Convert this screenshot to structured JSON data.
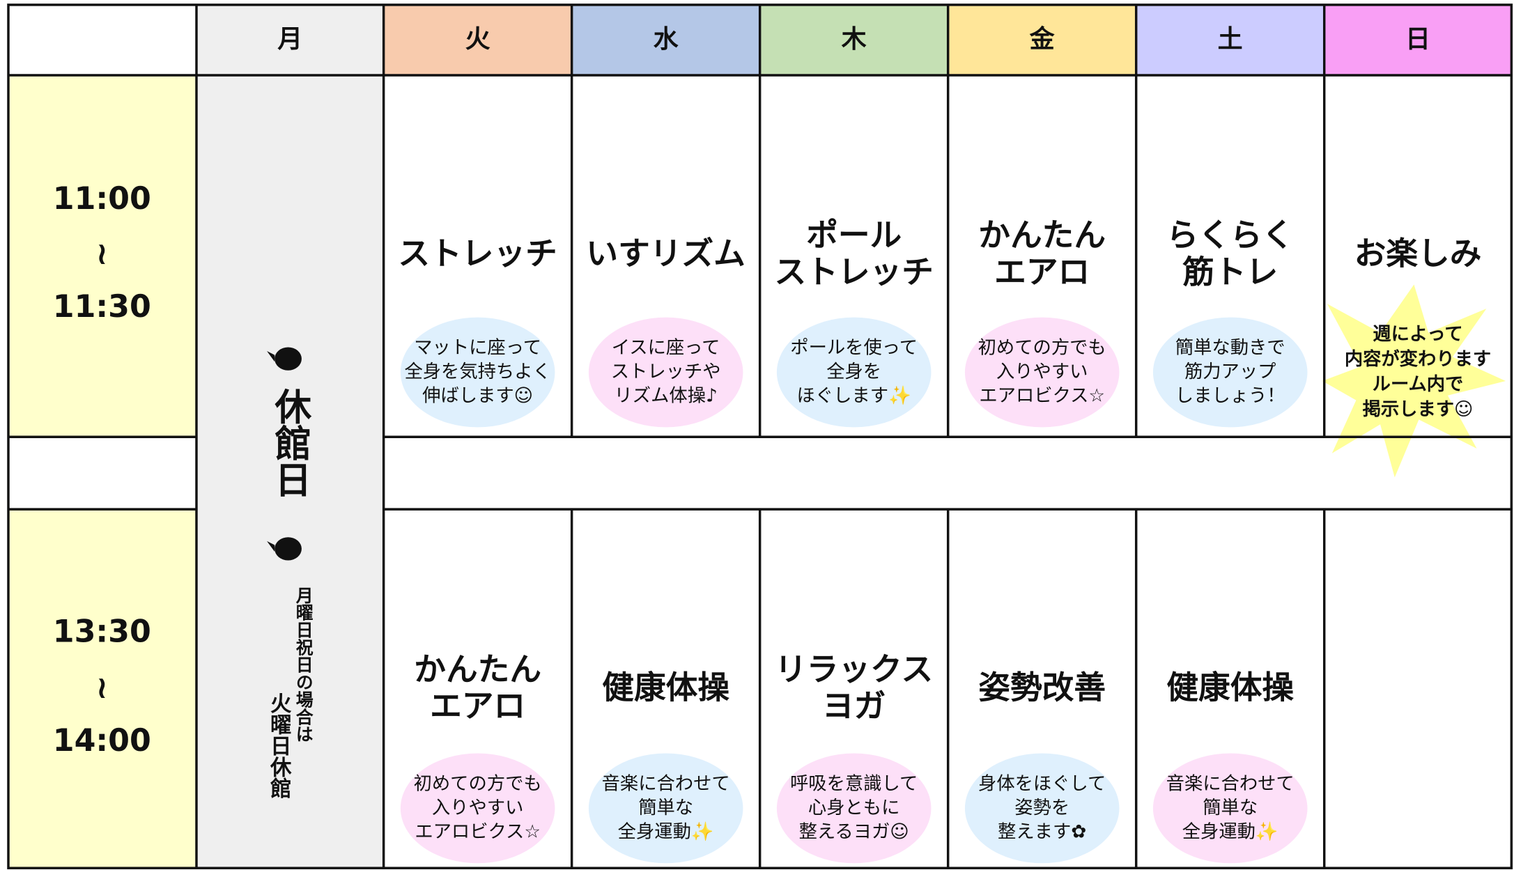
{
  "header": {
    "days": [
      "月",
      "火",
      "水",
      "木",
      "金",
      "土",
      "日"
    ]
  },
  "times": [
    {
      "start": "11:00",
      "separator": "≀",
      "end": "11:30"
    },
    {
      "start": "13:30",
      "separator": "≀",
      "end": "14:00"
    }
  ],
  "closed": {
    "title": "休館日",
    "note": [
      "月曜日祝日の場合は",
      "火曜日休館"
    ]
  },
  "morning": [
    {
      "title": [
        "ストレッチ"
      ],
      "description": [
        "マットに座って",
        "全身を気持ちよく",
        "伸ばします☺"
      ]
    },
    {
      "title": [
        "いすリズム"
      ],
      "description": [
        "イスに座って",
        "ストレッチや",
        "リズム体操♪"
      ]
    },
    {
      "title": [
        "ポール",
        "ストレッチ"
      ],
      "description": [
        "ポールを使って",
        "全身を",
        "ほぐします✨"
      ]
    },
    {
      "title": [
        "かんたん",
        "エアロ"
      ],
      "description": [
        "初めての方でも",
        "入りやすい",
        "エアロビクス☆"
      ]
    },
    {
      "title": [
        "らくらく",
        "筋トレ"
      ],
      "description": [
        "簡単な動きで",
        "筋力アップ",
        "しましょう！"
      ]
    },
    {
      "title": [
        "お楽しみ"
      ],
      "description": [
        "週によって",
        "内容が変わります",
        "ルーム内で",
        "掲示します☺"
      ]
    }
  ],
  "afternoon": [
    {
      "title": [
        "かんたん",
        "エアロ"
      ],
      "description": [
        "初めての方でも",
        "入りやすい",
        "エアロビクス☆"
      ]
    },
    {
      "title": [
        "健康体操"
      ],
      "description": [
        "音楽に合わせて",
        "簡単な",
        "全身運動✨"
      ]
    },
    {
      "title": [
        "リラックス",
        "ヨガ"
      ],
      "description": [
        "呼吸を意識して",
        "心身ともに",
        "整えるヨガ☺"
      ]
    },
    {
      "title": [
        "姿勢改善"
      ],
      "description": [
        "身体をほぐして",
        "姿勢を",
        "整えます✿"
      ]
    },
    {
      "title": [
        "健康体操"
      ],
      "description": [
        "音楽に合わせて",
        "簡単な",
        "全身運動✨"
      ]
    }
  ]
}
